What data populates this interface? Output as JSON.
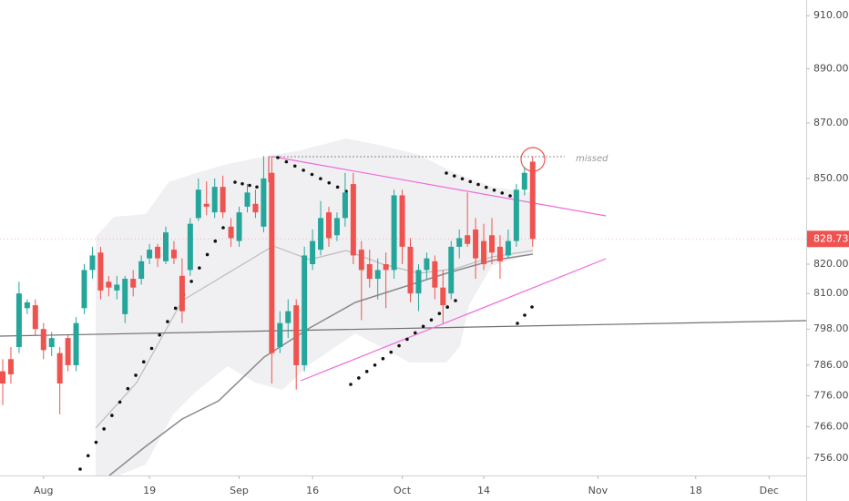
{
  "chart_data": {
    "type": "candlestick",
    "log_scale": true,
    "up_color": "#26a69a",
    "down_color": "#ef5350",
    "ylim": [
      750.5,
      916
    ],
    "yticks": [
      {
        "value": 910,
        "label": "910.00"
      },
      {
        "value": 890,
        "label": "890.00"
      },
      {
        "value": 870,
        "label": "870.00"
      },
      {
        "value": 850,
        "label": "850.00"
      },
      {
        "value": 820,
        "label": "820.00"
      },
      {
        "value": 810,
        "label": "810.00"
      },
      {
        "value": 798,
        "label": "798.00"
      },
      {
        "value": 786,
        "label": "786.00"
      },
      {
        "value": 776,
        "label": "776.00"
      },
      {
        "value": 766,
        "label": "766.00"
      },
      {
        "value": 756,
        "label": "756.00"
      }
    ],
    "xticks": [
      {
        "value": 5,
        "label": "Aug"
      },
      {
        "value": 18,
        "label": "19"
      },
      {
        "value": 29,
        "label": "Sep"
      },
      {
        "value": 38,
        "label": "16"
      },
      {
        "value": 49,
        "label": "Oct"
      },
      {
        "value": 59,
        "label": "14"
      },
      {
        "value": 73,
        "label": "Nov"
      },
      {
        "value": 85,
        "label": "18"
      },
      {
        "value": 94,
        "label": "Dec"
      }
    ],
    "last_price": {
      "value": 828.73,
      "label": "828.73"
    },
    "annotation": "missed",
    "open": [
      784,
      788,
      792,
      805,
      806,
      798,
      792,
      790,
      795,
      786,
      805,
      818,
      824,
      814,
      811,
      803,
      815,
      815,
      822,
      826,
      821,
      825,
      816,
      818,
      836,
      841,
      838,
      847,
      833,
      828,
      840,
      841,
      833,
      852,
      792,
      800,
      806,
      786,
      820,
      825,
      838,
      830,
      836,
      848,
      825,
      820,
      815,
      820,
      818,
      844,
      826,
      810,
      818,
      821,
      812,
      810,
      826,
      830,
      832,
      828,
      830,
      826,
      823,
      828,
      846,
      856
    ],
    "high": [
      788,
      792,
      814,
      808,
      808,
      800,
      797,
      792,
      796,
      802,
      820,
      826,
      826,
      816,
      816,
      816,
      818,
      823,
      827,
      827,
      833,
      828,
      822,
      836,
      850,
      849,
      850,
      851,
      836,
      840,
      848,
      846,
      858,
      858,
      804,
      808,
      808,
      826,
      832,
      842,
      840,
      838,
      852,
      852,
      828,
      825,
      822,
      824,
      846,
      846,
      829,
      820,
      824,
      823,
      818,
      828,
      832,
      845,
      836,
      834,
      836,
      830,
      832,
      848,
      854,
      858
    ],
    "low": [
      773,
      780,
      790,
      803,
      796,
      788,
      789,
      770,
      784,
      784,
      803,
      815,
      808,
      809,
      808,
      800,
      809,
      813,
      820,
      819,
      820,
      820,
      800,
      816,
      835,
      837,
      836,
      836,
      826,
      826,
      838,
      836,
      831,
      780,
      790,
      795,
      778,
      784,
      818,
      823,
      826,
      828,
      833,
      820,
      801,
      812,
      808,
      805,
      815,
      820,
      807,
      804,
      815,
      808,
      800,
      808,
      822,
      826,
      815,
      818,
      820,
      815,
      822,
      826,
      844,
      826
    ],
    "close": [
      780,
      783,
      810,
      807,
      798,
      791,
      795,
      780,
      786,
      800,
      818,
      823,
      811,
      812,
      813,
      815,
      812,
      821,
      825,
      822,
      831,
      822,
      804,
      834,
      846,
      840,
      847,
      838,
      829,
      838,
      845,
      838,
      850,
      790,
      800,
      804,
      786,
      823,
      828,
      836,
      829,
      836,
      845,
      823,
      818,
      815,
      818,
      818,
      844,
      826,
      810,
      818,
      822,
      812,
      806,
      826,
      829,
      827,
      822,
      820,
      824,
      821,
      828,
      846,
      852,
      828.73
    ]
  }
}
